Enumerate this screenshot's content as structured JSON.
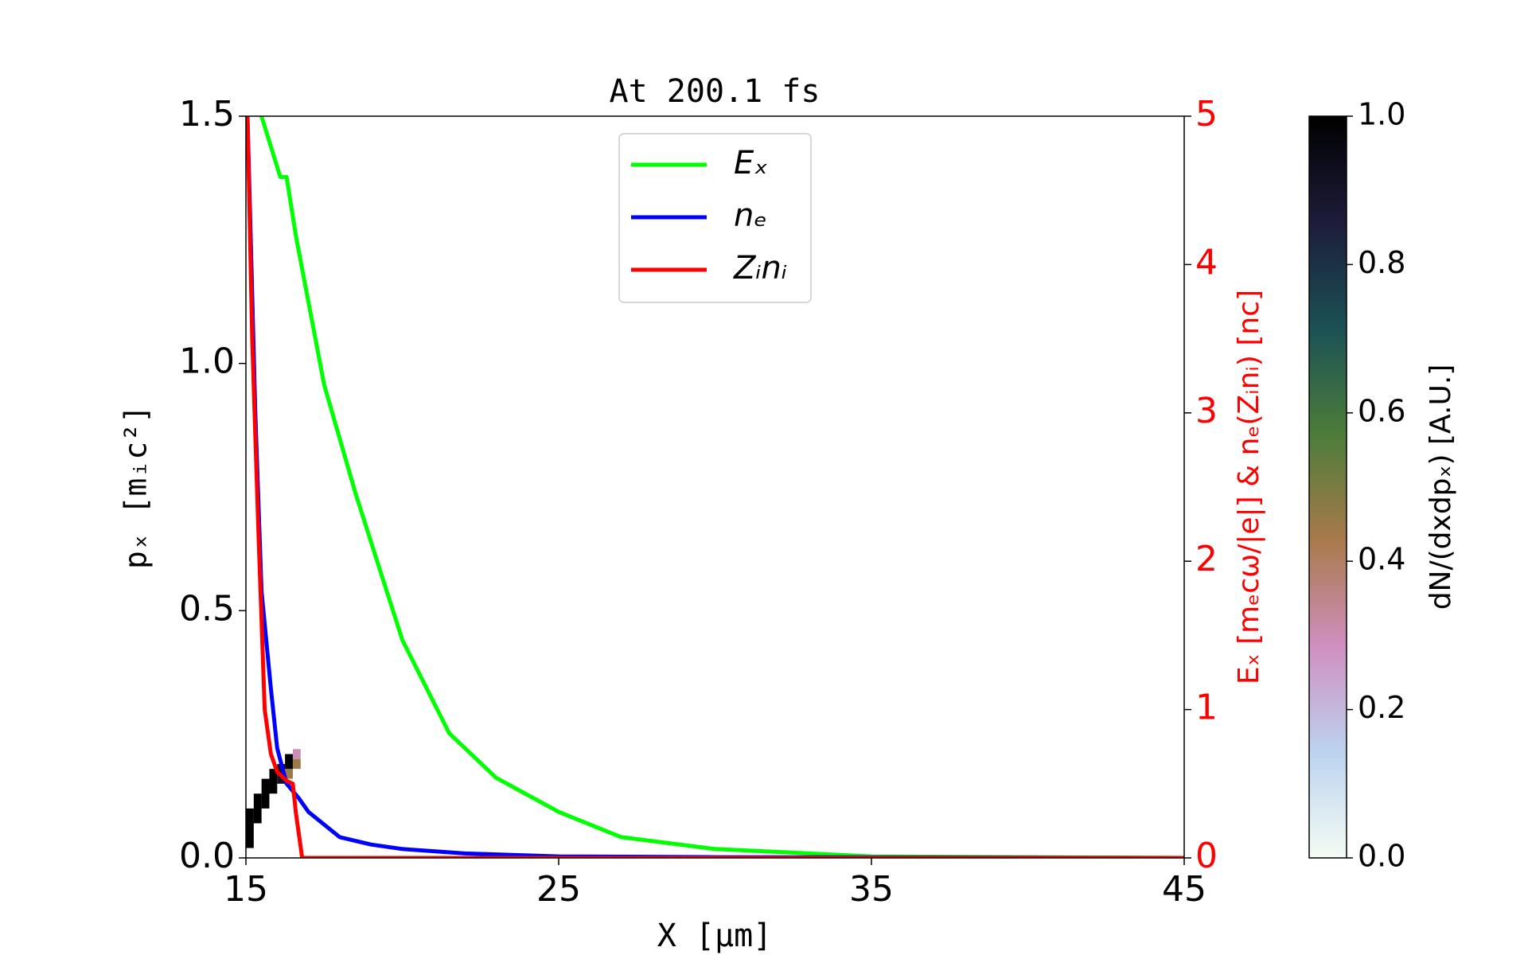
{
  "chart_data": {
    "type": "line",
    "title": "At 200.1 fs",
    "x_label": "X  [μm]",
    "y_label": "pₓ  [mᵢc²]",
    "y2_label": "Eₓ  [mₑcω/|e|]  &  nₑ(Zᵢnᵢ)  [nc]",
    "xlim": [
      15,
      45
    ],
    "xticks": [
      15,
      25,
      35,
      45
    ],
    "ylim": [
      0,
      1.5
    ],
    "yticks": [
      {
        "value": 0,
        "label": "0.0"
      },
      0.5,
      {
        "value": 1,
        "label": "1.0"
      },
      1.5
    ],
    "y2lim": [
      0,
      5
    ],
    "y2ticks": [
      0,
      1,
      2,
      3,
      4,
      5
    ],
    "y2_color": "#ff0000",
    "legend": "upper center",
    "series": [
      {
        "name": "Eₓ",
        "color": "#00ff00",
        "axis": "y2",
        "x": [
          15.5,
          16.1,
          16.3,
          16.6,
          17.5,
          18.5,
          20,
          21.5,
          23,
          25,
          27,
          30,
          35,
          45
        ],
        "values": [
          5.0,
          4.59,
          4.59,
          4.19,
          3.19,
          2.46,
          1.47,
          0.84,
          0.54,
          0.31,
          0.14,
          0.06,
          0.01,
          0
        ]
      },
      {
        "name": "nₑ",
        "color": "#0000ff",
        "axis": "y2",
        "x": [
          15.05,
          15.3,
          15.5,
          15.8,
          16.0,
          16.3,
          16.7,
          17,
          18,
          19,
          20,
          22,
          25,
          30,
          45
        ],
        "values": [
          5.0,
          3.0,
          1.8,
          1.14,
          0.74,
          0.5,
          0.4,
          0.31,
          0.14,
          0.09,
          0.06,
          0.03,
          0.01,
          0.005,
          0
        ]
      },
      {
        "name": "Zᵢnᵢ",
        "color": "#ff0000",
        "axis": "y2",
        "x": [
          15.05,
          15.2,
          15.4,
          15.6,
          15.8,
          16.0,
          16.3,
          16.5,
          16.6,
          16.8,
          45
        ],
        "values": [
          5.0,
          3.5,
          2.2,
          1.0,
          0.7,
          0.58,
          0.52,
          0.5,
          0.3,
          0,
          0
        ]
      }
    ],
    "heatmap": {
      "colorbar_label": "dN/(dxdpₓ)  [A.U.]",
      "clim": [
        0,
        1
      ],
      "cticks": [
        {
          "value": 0,
          "label": "0.0"
        },
        0.2,
        0.4,
        0.6,
        0.8,
        {
          "value": 1,
          "label": "1.0"
        }
      ],
      "colormap": [
        "#f4fbf3",
        "#bcd3ef",
        "#d08fc0",
        "#a87a4a",
        "#4c7d3a",
        "#1b5155",
        "#1d1c3a",
        "#000000"
      ],
      "cells": [
        {
          "x0": 15.0,
          "x1": 15.25,
          "y0": 0.02,
          "y1": 0.1,
          "value": 1
        },
        {
          "x0": 15.25,
          "x1": 15.5,
          "y0": 0.07,
          "y1": 0.13,
          "value": 1
        },
        {
          "x0": 15.5,
          "x1": 15.75,
          "y0": 0.1,
          "y1": 0.16,
          "value": 1
        },
        {
          "x0": 15.75,
          "x1": 16.0,
          "y0": 0.13,
          "y1": 0.18,
          "value": 1
        },
        {
          "x0": 16.0,
          "x1": 16.25,
          "y0": 0.15,
          "y1": 0.19,
          "value": 0.9
        },
        {
          "x0": 16.25,
          "x1": 16.5,
          "y0": 0.16,
          "y1": 0.18,
          "value": 0.45
        },
        {
          "x0": 16.25,
          "x1": 16.5,
          "y0": 0.18,
          "y1": 0.21,
          "value": 1
        },
        {
          "x0": 16.5,
          "x1": 16.75,
          "y0": 0.18,
          "y1": 0.2,
          "value": 0.45
        },
        {
          "x0": 16.5,
          "x1": 16.75,
          "y0": 0.2,
          "y1": 0.22,
          "value": 0.3
        }
      ]
    }
  }
}
